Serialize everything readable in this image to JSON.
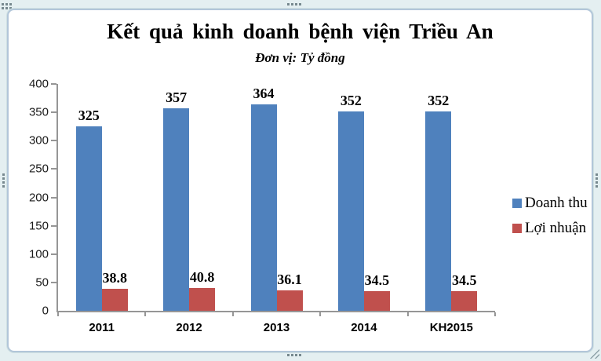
{
  "chart_data": {
    "type": "bar",
    "title": "Kết quả kinh doanh bệnh viện Triều An",
    "subtitle": "Đơn vị: Tỷ đồng",
    "categories": [
      "2011",
      "2012",
      "2013",
      "2014",
      "KH2015"
    ],
    "series": [
      {
        "name": "Doanh thu",
        "color": "#4F81BD",
        "values": [
          325,
          357,
          364,
          352,
          352
        ],
        "labels": [
          "325",
          "357",
          "364",
          "352",
          "352"
        ]
      },
      {
        "name": "Lợi nhuận",
        "color": "#C0504D",
        "values": [
          38.8,
          40.8,
          36.1,
          34.5,
          34.5
        ],
        "labels": [
          "38.8",
          "40.8",
          "36.1",
          "34.5",
          "34.5"
        ]
      }
    ],
    "xlabel": "",
    "ylabel": "",
    "ylim": [
      0,
      400
    ],
    "yticks": [
      0,
      50,
      100,
      150,
      200,
      250,
      300,
      350,
      400
    ],
    "grid": false,
    "legend_position": "right",
    "data_labels": true,
    "axis_color": "#969696",
    "background_color": "#FFFFFF",
    "frame_color": "#E4EFF1"
  }
}
